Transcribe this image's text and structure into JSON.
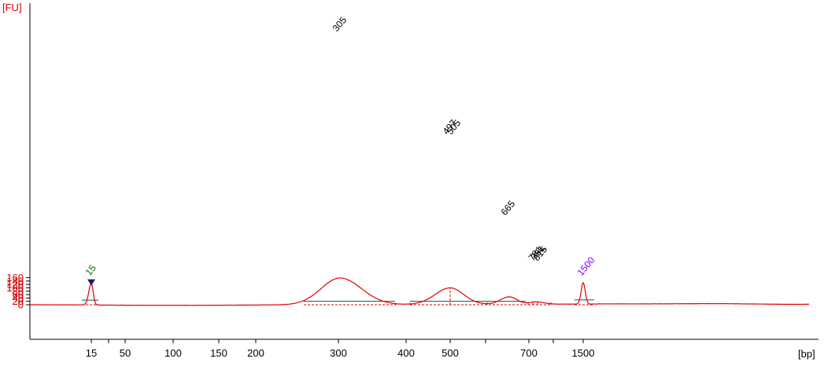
{
  "chart_data": {
    "type": "line",
    "title": "",
    "xlabel": "[bp]",
    "ylabel": "[FU]",
    "ylim": [
      -20,
      170
    ],
    "y_ticks": [
      0,
      20,
      40,
      60,
      80,
      100,
      120,
      140,
      160
    ],
    "x_tick_labels": [
      "15",
      "50",
      "100",
      "150",
      "200",
      "300",
      "400",
      "500",
      "700",
      "1500"
    ],
    "x_unlabeled_ticks": 3,
    "colors": {
      "trace": "#e00000",
      "baseline": "#006040",
      "axis_labels": "#d40000",
      "lower_marker": "#007000",
      "upper_marker": "#8000ff",
      "peak_label": "#000000"
    },
    "markers": [
      {
        "label": "15",
        "role": "lower",
        "height": 127
      },
      {
        "label": "1500",
        "role": "upper",
        "height": 126
      }
    ],
    "peak_labels": [
      "305",
      "497",
      "505",
      "665",
      "781",
      "791",
      "815"
    ],
    "peaks": [
      {
        "label": "15",
        "height": 127
      },
      {
        "label": "305",
        "height": 158
      },
      {
        "label": "497",
        "height": 97
      },
      {
        "label": "505",
        "height": 98
      },
      {
        "label": "665",
        "height": 50
      },
      {
        "label": "781",
        "height": 25
      },
      {
        "label": "791",
        "height": 25
      },
      {
        "label": "815",
        "height": 24
      },
      {
        "label": "1500",
        "height": 126
      }
    ],
    "grid": false,
    "legend": "none"
  }
}
